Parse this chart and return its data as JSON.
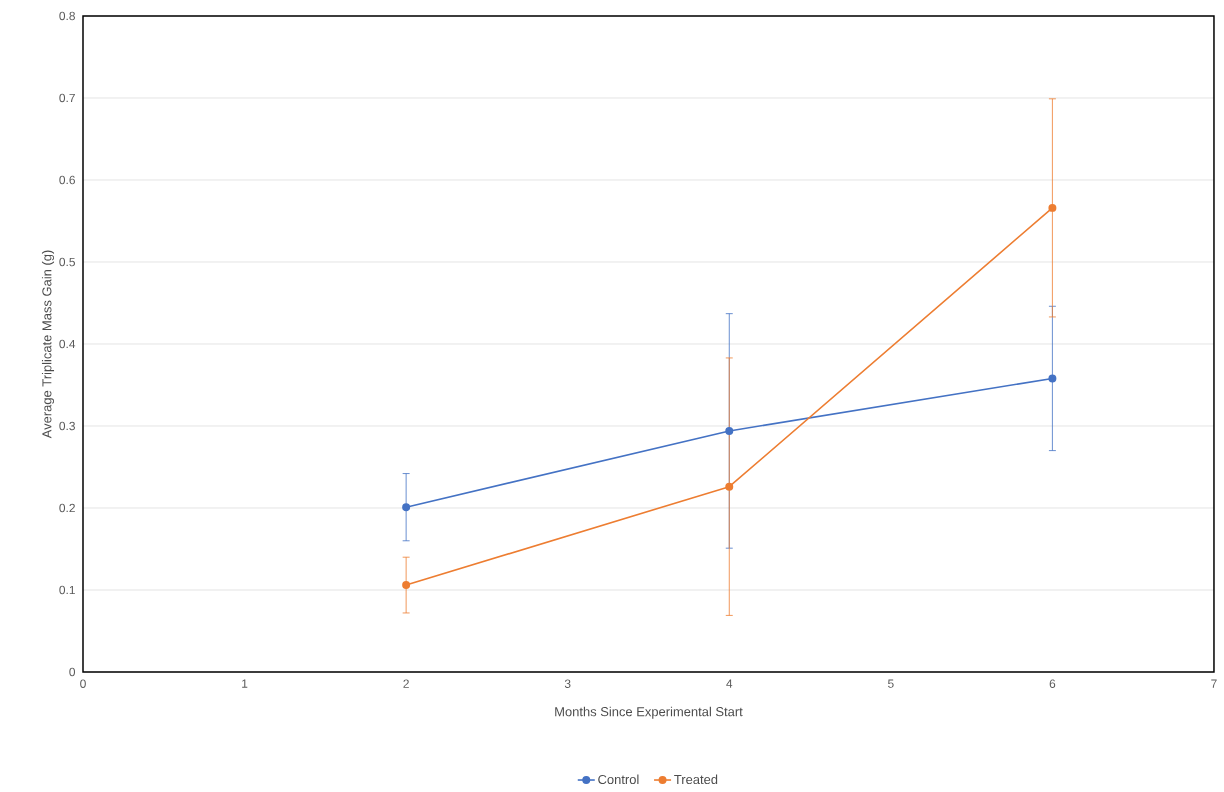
{
  "chart_data": {
    "type": "line",
    "xlabel": "Months Since Experimental Start",
    "ylabel": "Average Triplicate Mass Gain (g)",
    "x": [
      2,
      4,
      6
    ],
    "series": [
      {
        "name": "Control",
        "color": "#4472c4",
        "values": [
          0.201,
          0.294,
          0.358
        ],
        "errors": [
          0.041,
          0.143,
          0.088
        ]
      },
      {
        "name": "Treated",
        "color": "#ed7d31",
        "values": [
          0.106,
          0.226,
          0.566
        ],
        "errors": [
          0.034,
          0.157,
          0.133
        ]
      }
    ],
    "xlim": [
      0,
      7
    ],
    "xticks": [
      0,
      1,
      2,
      3,
      4,
      5,
      6,
      7
    ],
    "ylim": [
      0,
      0.8
    ],
    "yticks": [
      0,
      0.1,
      0.2,
      0.3,
      0.4,
      0.5,
      0.6,
      0.7,
      0.8
    ],
    "grid": "y",
    "legend": "bottom",
    "marker": "circle",
    "line_style": "solid"
  }
}
